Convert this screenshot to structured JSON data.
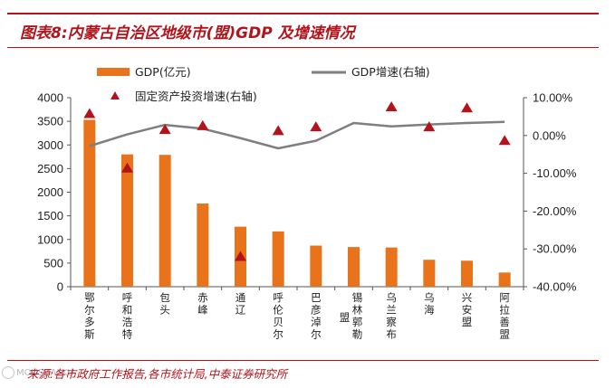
{
  "header": {
    "title": "图表8:内蒙古自治区地级市(盟)GDP 及增速情况"
  },
  "footer": {
    "source": "来源:各市政府工作报告,各市统计局,中泰证券研究所",
    "watermark": "MOUSHALKU"
  },
  "colors": {
    "accent": "#b3141c",
    "bar": "#e8731a",
    "line": "#7f7f7f",
    "marker": "#b3141c"
  },
  "chart_data": {
    "type": "bar",
    "categories": [
      "鄂尔多斯",
      "呼和浩特",
      "包头",
      "赤峰",
      "通辽",
      "呼伦贝尔",
      "巴彦淖尔",
      "锡林郭勒盟",
      "乌兰察布",
      "乌海",
      "兴安盟",
      "阿拉善盟"
    ],
    "series": [
      {
        "name": "GDP(亿元)",
        "type": "bar",
        "axis": "left",
        "values": [
          3530,
          2800,
          2790,
          1760,
          1270,
          1170,
          870,
          840,
          830,
          570,
          550,
          300
        ]
      },
      {
        "name": "GDP增速(右轴)",
        "type": "line",
        "axis": "right",
        "values": [
          -2.8,
          0.3,
          2.8,
          1.8,
          -0.7,
          -3.4,
          -1.4,
          3.3,
          2.4,
          2.9,
          3.3,
          3.6
        ]
      },
      {
        "name": "固定资产投资增速(右轴)",
        "type": "scatter",
        "axis": "right",
        "values": [
          5.8,
          -8.6,
          1.6,
          2.6,
          -32.0,
          1.3,
          2.3,
          null,
          7.6,
          2.3,
          7.3,
          -1.3
        ]
      }
    ],
    "y_left": {
      "min": 0,
      "max": 4000,
      "step": 500,
      "ticks": [
        "0",
        "500",
        "1000",
        "1500",
        "2000",
        "2500",
        "3000",
        "3500",
        "4000"
      ]
    },
    "y_right": {
      "min": -40,
      "max": 10,
      "step": 10,
      "ticks": [
        "-40.00%",
        "-30.00%",
        "-20.00%",
        "-10.00%",
        "0.00%",
        "10.00%"
      ]
    },
    "legend": {
      "bar": "GDP(亿元)",
      "line": "GDP增速(右轴)",
      "scatter": "固定资产投资增速(右轴)"
    },
    "grid": false
  }
}
